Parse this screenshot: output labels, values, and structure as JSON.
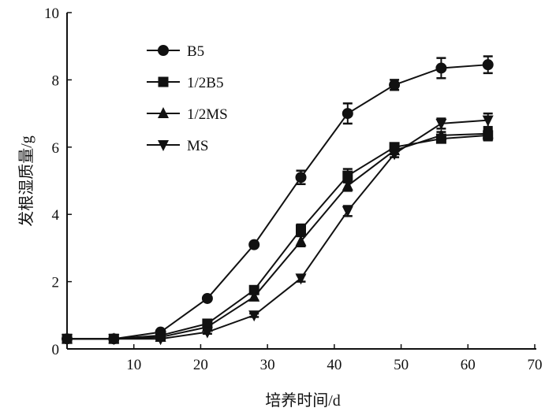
{
  "chart_data": {
    "type": "line",
    "title": "",
    "xlabel": "培养时间/d",
    "ylabel": "发根湿质量/g",
    "xlim": [
      0,
      70
    ],
    "ylim": [
      0,
      10
    ],
    "xticks": [
      10,
      20,
      30,
      40,
      50,
      60,
      70
    ],
    "yticks": [
      0,
      2,
      4,
      6,
      8,
      10
    ],
    "grid": false,
    "legend_position": "top-left",
    "x": [
      0,
      7,
      14,
      21,
      28,
      35,
      42,
      49,
      56,
      63
    ],
    "series": [
      {
        "name": "B5",
        "marker": "circle",
        "values": [
          0.3,
          0.3,
          0.5,
          1.5,
          3.1,
          5.1,
          7.0,
          7.85,
          8.35,
          8.45
        ],
        "errors": [
          0.05,
          0.05,
          0.05,
          0.05,
          0.05,
          0.2,
          0.3,
          0.15,
          0.3,
          0.25
        ]
      },
      {
        "name": "1/2B5",
        "marker": "square",
        "values": [
          0.3,
          0.3,
          0.4,
          0.75,
          1.75,
          3.55,
          5.15,
          6.0,
          6.25,
          6.35
        ],
        "errors": [
          0.05,
          0.05,
          0.05,
          0.05,
          0.1,
          0.15,
          0.2,
          0.1,
          0.1,
          0.15
        ]
      },
      {
        "name": "1/2MS",
        "marker": "triangle-up",
        "values": [
          0.3,
          0.3,
          0.35,
          0.65,
          1.55,
          3.2,
          4.85,
          5.9,
          6.35,
          6.4
        ],
        "errors": [
          0.05,
          0.05,
          0.05,
          0.05,
          0.1,
          0.15,
          0.15,
          0.1,
          0.1,
          0.15
        ]
      },
      {
        "name": "MS",
        "marker": "triangle-down",
        "values": [
          0.3,
          0.3,
          0.3,
          0.5,
          1.0,
          2.1,
          4.1,
          5.8,
          6.7,
          6.8
        ],
        "errors": [
          0.05,
          0.05,
          0.05,
          0.05,
          0.05,
          0.1,
          0.15,
          0.1,
          0.15,
          0.2
        ]
      }
    ]
  }
}
